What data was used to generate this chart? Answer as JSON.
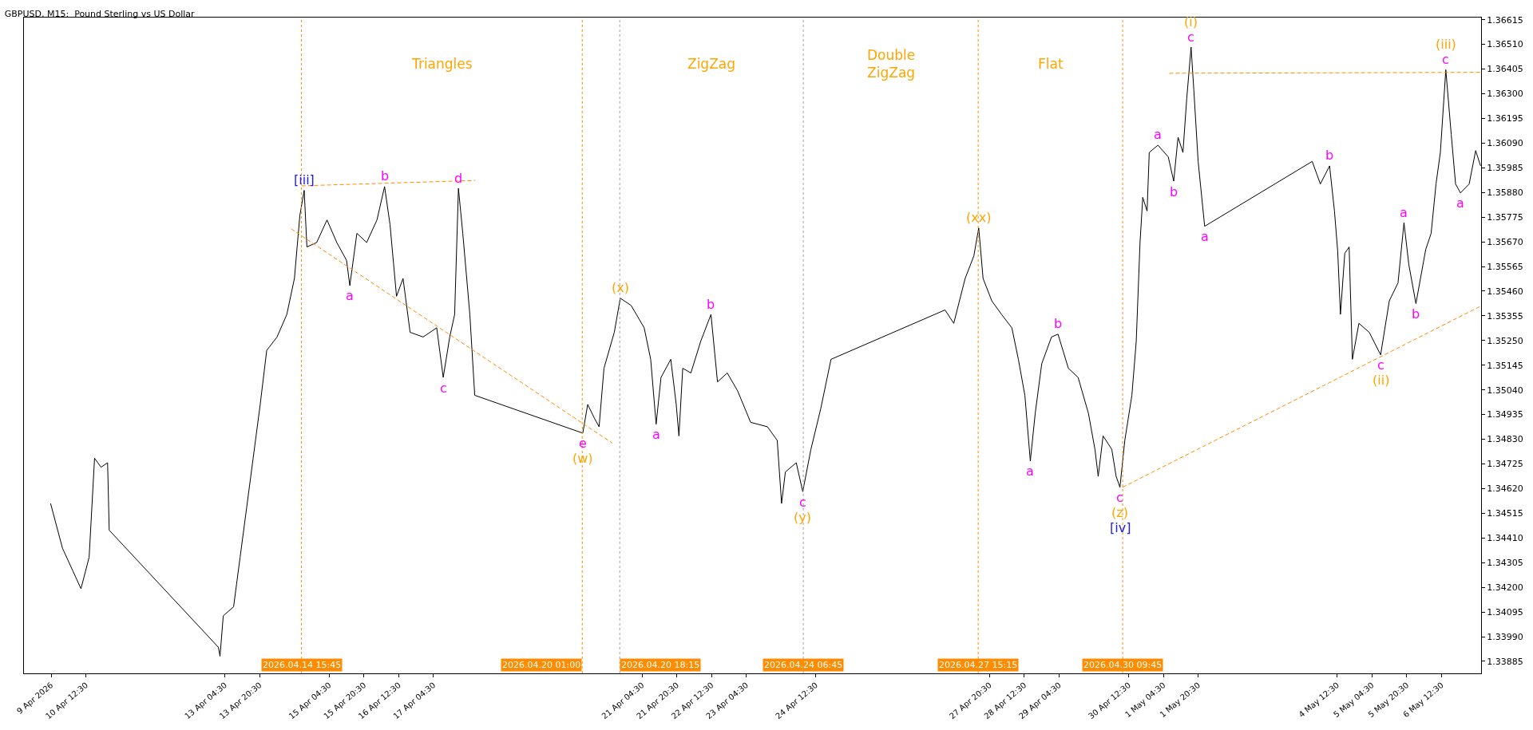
{
  "chart_data": {
    "type": "line",
    "title": "GBPUSD, M15:  Pound Sterling vs US Dollar",
    "xlim": [
      "2026-04-09T08:00",
      "2026-05-07T06:45"
    ],
    "ylim": [
      1.33834,
      1.36624
    ],
    "xticks": [
      {
        "value": "2026-04-09T20:30",
        "label": "9 Apr 2026"
      },
      {
        "value": "2026-04-10T12:30",
        "label": "10 Apr 12:30"
      },
      {
        "value": "2026-04-13T04:30",
        "label": "13 Apr 04:30"
      },
      {
        "value": "2026-04-13T20:30",
        "label": "13 Apr 20:30"
      },
      {
        "value": "2026-04-15T04:30",
        "label": "15 Apr 04:30"
      },
      {
        "value": "2026-04-15T20:30",
        "label": "15 Apr 20:30"
      },
      {
        "value": "2026-04-16T12:30",
        "label": "16 Apr 12:30"
      },
      {
        "value": "2026-04-17T04:30",
        "label": "17 Apr 04:30"
      },
      {
        "value": "2026-04-21T04:30",
        "label": "21 Apr 04:30"
      },
      {
        "value": "2026-04-21T20:30",
        "label": "21 Apr 20:30"
      },
      {
        "value": "2026-04-22T12:30",
        "label": "22 Apr 12:30"
      },
      {
        "value": "2026-04-23T04:30",
        "label": "23 Apr 04:30"
      },
      {
        "value": "2026-04-24T12:30",
        "label": "24 Apr 12:30"
      },
      {
        "value": "2026-04-27T20:30",
        "label": "27 Apr 20:30"
      },
      {
        "value": "2026-04-28T12:30",
        "label": "28 Apr 12:30"
      },
      {
        "value": "2026-04-29T04:30",
        "label": "29 Apr 04:30"
      },
      {
        "value": "2026-04-30T12:30",
        "label": "30 Apr 12:30"
      },
      {
        "value": "2026-05-01T04:30",
        "label": "1 May 04:30"
      },
      {
        "value": "2026-05-01T20:30",
        "label": "1 May 20:30"
      },
      {
        "value": "2026-05-04T12:30",
        "label": "4 May 12:30"
      },
      {
        "value": "2026-05-05T04:30",
        "label": "5 May 04:30"
      },
      {
        "value": "2026-05-05T20:30",
        "label": "5 May 20:30"
      },
      {
        "value": "2026-05-06T12:30",
        "label": "6 May 12:30"
      }
    ],
    "yticks": [
      {
        "value": 1.33885,
        "label": "1.33885"
      },
      {
        "value": 1.3399,
        "label": "1.33990"
      },
      {
        "value": 1.34095,
        "label": "1.34095"
      },
      {
        "value": 1.342,
        "label": "1.34200"
      },
      {
        "value": 1.34305,
        "label": "1.34305"
      },
      {
        "value": 1.3441,
        "label": "1.34410"
      },
      {
        "value": 1.34515,
        "label": "1.34515"
      },
      {
        "value": 1.3462,
        "label": "1.34620"
      },
      {
        "value": 1.34725,
        "label": "1.34725"
      },
      {
        "value": 1.3483,
        "label": "1.34830"
      },
      {
        "value": 1.34935,
        "label": "1.34935"
      },
      {
        "value": 1.3504,
        "label": "1.35040"
      },
      {
        "value": 1.35145,
        "label": "1.35145"
      },
      {
        "value": 1.3525,
        "label": "1.35250"
      },
      {
        "value": 1.35355,
        "label": "1.35355"
      },
      {
        "value": 1.3546,
        "label": "1.35460"
      },
      {
        "value": 1.35565,
        "label": "1.35565"
      },
      {
        "value": 1.3567,
        "label": "1.35670"
      },
      {
        "value": 1.35775,
        "label": "1.35775"
      },
      {
        "value": 1.3588,
        "label": "1.35880"
      },
      {
        "value": 1.35985,
        "label": "1.35985"
      },
      {
        "value": 1.3609,
        "label": "1.36090"
      },
      {
        "value": 1.36195,
        "label": "1.36195"
      },
      {
        "value": 1.363,
        "label": "1.36300"
      },
      {
        "value": 1.36405,
        "label": "1.36405"
      },
      {
        "value": 1.3651,
        "label": "1.36510"
      },
      {
        "value": 1.36615,
        "label": "1.36615"
      }
    ],
    "series": [
      {
        "color": "#000000",
        "x": [
          "2026-04-09T20:15",
          "2026-04-10T01:45",
          "2026-04-10T06:30",
          "2026-04-10T10:15",
          "2026-04-10T14:00",
          "2026-04-10T16:30",
          "2026-04-10T19:30",
          "2026-04-10T22:30",
          "2026-04-10T23:15",
          "2026-04-13T01:30",
          "2026-04-13T02:15",
          "2026-04-13T03:45",
          "2026-04-13T08:30",
          "2026-04-13T11:30",
          "2026-04-13T14:30",
          "2026-04-13T17:30",
          "2026-04-13T20:45",
          "2026-04-13T23:45",
          "2026-04-14T04:30",
          "2026-04-14T09:00",
          "2026-04-14T12:30",
          "2026-04-14T15:00",
          "2026-04-14T17:00",
          "2026-04-14T18:15",
          "2026-04-14T22:45",
          "2026-04-15T03:30",
          "2026-04-15T08:00",
          "2026-04-15T12:30",
          "2026-04-15T14:00",
          "2026-04-15T17:15",
          "2026-04-15T21:45",
          "2026-04-16T02:30",
          "2026-04-16T06:00",
          "2026-04-16T08:30",
          "2026-04-16T11:30",
          "2026-04-16T14:30",
          "2026-04-16T17:45",
          "2026-04-16T23:45",
          "2026-04-17T06:00",
          "2026-04-17T09:00",
          "2026-04-17T12:00",
          "2026-04-17T14:15",
          "2026-04-17T16:00",
          "2026-04-17T18:00",
          "2026-04-17T21:15",
          "2026-04-17T23:30",
          "2026-04-20T01:15",
          "2026-04-20T03:30",
          "2026-04-20T06:30",
          "2026-04-20T08:45",
          "2026-04-20T11:00",
          "2026-04-20T15:45",
          "2026-04-20T18:30",
          "2026-04-20T23:30",
          "2026-04-21T05:30",
          "2026-04-21T08:30",
          "2026-04-21T11:00",
          "2026-04-21T13:15",
          "2026-04-21T17:45",
          "2026-04-21T20:15",
          "2026-04-21T21:30",
          "2026-04-21T23:15",
          "2026-04-22T03:00",
          "2026-04-22T07:30",
          "2026-04-22T12:15",
          "2026-04-22T15:15",
          "2026-04-22T19:45",
          "2026-04-23T00:30",
          "2026-04-23T06:30",
          "2026-04-23T14:15",
          "2026-04-23T18:45",
          "2026-04-23T20:45",
          "2026-04-23T22:30",
          "2026-04-24T03:30",
          "2026-04-24T06:30",
          "2026-04-24T10:15",
          "2026-04-24T14:45",
          "2026-04-24T19:30",
          "2026-04-27T00:00",
          "2026-04-27T04:00",
          "2026-04-27T09:15",
          "2026-04-27T13:15",
          "2026-04-27T15:30",
          "2026-04-27T17:30",
          "2026-04-27T21:30",
          "2026-04-28T02:00",
          "2026-04-28T06:45",
          "2026-04-28T09:45",
          "2026-04-28T12:45",
          "2026-04-28T15:15",
          "2026-04-28T17:30",
          "2026-04-28T20:30",
          "2026-04-29T01:00",
          "2026-04-29T04:00",
          "2026-04-29T08:45",
          "2026-04-29T13:15",
          "2026-04-29T18:00",
          "2026-04-29T21:00",
          "2026-04-29T22:30",
          "2026-04-30T00:45",
          "2026-04-30T04:45",
          "2026-04-30T06:45",
          "2026-04-30T08:30",
          "2026-04-30T10:45",
          "2026-04-30T14:00",
          "2026-04-30T16:00",
          "2026-04-30T17:45",
          "2026-04-30T19:00",
          "2026-04-30T21:00",
          "2026-04-30T22:00",
          "2026-05-01T02:00",
          "2026-05-01T06:45",
          "2026-05-01T09:15",
          "2026-05-01T11:15",
          "2026-05-01T13:30",
          "2026-05-01T15:15",
          "2026-05-01T17:15",
          "2026-05-01T18:30",
          "2026-05-01T20:30",
          "2026-05-01T23:30",
          "2026-05-04T01:00",
          "2026-05-04T04:45",
          "2026-05-04T09:00",
          "2026-05-04T11:15",
          "2026-05-04T12:45",
          "2026-05-04T14:00",
          "2026-05-04T16:00",
          "2026-05-04T18:00",
          "2026-05-04T19:30",
          "2026-05-04T22:30",
          "2026-05-05T03:15",
          "2026-05-05T08:30",
          "2026-05-05T12:30",
          "2026-05-05T16:30",
          "2026-05-05T19:15",
          "2026-05-05T21:30",
          "2026-05-06T00:45",
          "2026-05-06T05:15",
          "2026-05-06T07:45",
          "2026-05-06T10:00",
          "2026-05-06T12:00",
          "2026-05-06T14:30",
          "2026-05-06T17:00",
          "2026-05-06T19:00",
          "2026-05-06T21:15",
          "2026-05-07T01:15",
          "2026-05-07T04:15",
          "2026-05-07T06:30"
        ],
        "values": [
          1.34557,
          1.34366,
          1.3427,
          1.34194,
          1.34328,
          1.34749,
          1.34711,
          1.3473,
          1.34443,
          1.33945,
          1.33907,
          1.34079,
          1.34117,
          1.34328,
          1.34538,
          1.34749,
          1.34978,
          1.35208,
          1.35265,
          1.35361,
          1.35514,
          1.35782,
          1.35889,
          1.35648,
          1.35667,
          1.35763,
          1.35667,
          1.35591,
          1.35484,
          1.35706,
          1.35667,
          1.35763,
          1.35905,
          1.35744,
          1.35438,
          1.35514,
          1.35285,
          1.35265,
          1.35304,
          1.35093,
          1.35265,
          1.35361,
          1.35897,
          1.35706,
          1.35361,
          1.35017,
          1.34856,
          1.34978,
          1.34921,
          1.34883,
          1.35132,
          1.35285,
          1.3543,
          1.35399,
          1.35304,
          1.3517,
          1.34894,
          1.35093,
          1.3517,
          1.34978,
          1.34844,
          1.35132,
          1.35112,
          1.35246,
          1.35361,
          1.35074,
          1.35112,
          1.35036,
          1.34902,
          1.34883,
          1.34825,
          1.34557,
          1.34691,
          1.3473,
          1.34607,
          1.34787,
          1.34959,
          1.3517,
          1.3538,
          1.35323,
          1.35514,
          1.3561,
          1.35729,
          1.35514,
          1.35419,
          1.35361,
          1.35304,
          1.3517,
          1.35017,
          1.34737,
          1.3494,
          1.35151,
          1.35265,
          1.35277,
          1.35132,
          1.35093,
          1.3494,
          1.34787,
          1.34672,
          1.34844,
          1.34787,
          1.34672,
          1.34626,
          1.34825,
          1.35017,
          1.35246,
          1.35667,
          1.35859,
          1.35801,
          1.3605,
          1.36081,
          1.36031,
          1.35928,
          1.36115,
          1.3605,
          1.3628,
          1.36498,
          1.36318,
          1.36012,
          1.35736,
          1.36012,
          1.35916,
          1.35993,
          1.35801,
          1.35629,
          1.35361,
          1.35621,
          1.35648,
          1.3517,
          1.35323,
          1.35285,
          1.35189,
          1.35419,
          1.35495,
          1.35751,
          1.35572,
          1.35407,
          1.35637,
          1.35706,
          1.35916,
          1.3605,
          1.36402,
          1.36127,
          1.35916,
          1.35878,
          1.35916,
          1.36058,
          1.35993
        ]
      },
      {
        "type": "line",
        "color": "#ff8c00",
        "line_style": "dashed",
        "x": [
          "2026-04-14T15:45",
          "2026-04-17T23:45"
        ],
        "values": [
          1.35908,
          1.35931
        ]
      },
      {
        "type": "line",
        "color": "#ff8c00",
        "line_style": "dashed",
        "x": [
          "2026-04-14T11:00",
          "2026-04-20T14:45"
        ],
        "values": [
          1.35725,
          1.34814
        ]
      },
      {
        "type": "line",
        "color": "#ff8c00",
        "line_style": "dashed",
        "x": [
          "2026-05-01T07:15",
          "2026-05-07T06:30"
        ],
        "values": [
          1.36387,
          1.36391
        ]
      },
      {
        "type": "line",
        "color": "#ff8c00",
        "line_style": "dashed",
        "x": [
          "2026-04-30T09:45",
          "2026-05-07T06:30"
        ],
        "values": [
          1.34626,
          1.35396
        ]
      }
    ],
    "ref_lines": [
      {
        "axis": "x",
        "value": "2026-04-14T15:45",
        "label": "2026.04.14 15:45",
        "color": "#ff8c00",
        "line_style": "dotted"
      },
      {
        "axis": "x",
        "value": "2026-04-20T01:00",
        "label": "2026.04.20 01:00",
        "color": "#ff8c00",
        "line_style": "dotted"
      },
      {
        "axis": "x",
        "value": "2026-04-20T18:15",
        "label": "2026.04.20 18:15",
        "color": "#a0a0a0",
        "line_style": "dotted"
      },
      {
        "axis": "x",
        "value": "2026-04-24T06:45",
        "label": "2026.04.24 06:45",
        "color": "#a0a0a0",
        "line_style": "dotted"
      },
      {
        "axis": "x",
        "value": "2026-04-27T15:15",
        "label": "2026.04.27 15:15",
        "color": "#ff8c00",
        "line_style": "dotted"
      },
      {
        "axis": "x",
        "value": "2026-04-30T09:45",
        "label": "2026.04.30 09:45",
        "color": "#ff8c00",
        "line_style": "dotted"
      }
    ],
    "annotations": [
      "Triangles",
      "ZigZag",
      "Double ZigZag",
      "Flat",
      {
        "text": "[iii]",
        "x": "2026-04-14T17:00",
        "y": 1.35889
      },
      {
        "text": "b",
        "x": "2026-04-16T06:00",
        "y": 1.35905
      },
      {
        "text": "d",
        "x": "2026-04-17T16:00",
        "y": 1.35897
      },
      {
        "text": "a",
        "x": "2026-04-15T14:00",
        "y": 1.35484
      },
      {
        "text": "c",
        "x": "2026-04-17T09:00",
        "y": 1.35093
      },
      {
        "text": "e",
        "x": "2026-04-20T01:15",
        "y": 1.34856
      },
      {
        "text": "(w)",
        "x": "2026-04-20T01:15",
        "y": 1.34856
      },
      {
        "text": "(x)",
        "x": "2026-04-20T18:30",
        "y": 1.3543
      },
      {
        "text": "a",
        "x": "2026-04-21T11:00",
        "y": 1.34894
      },
      {
        "text": "b",
        "x": "2026-04-22T12:15",
        "y": 1.35361
      },
      {
        "text": "c",
        "x": "2026-04-24T06:30",
        "y": 1.34607
      },
      {
        "text": "(y)",
        "x": "2026-04-24T06:30",
        "y": 1.34607
      },
      {
        "text": "(xx)",
        "x": "2026-04-27T15:30",
        "y": 1.35729
      },
      {
        "text": "a",
        "x": "2026-04-28T15:15",
        "y": 1.34737
      },
      {
        "text": "b",
        "x": "2026-04-29T04:00",
        "y": 1.35277
      },
      {
        "text": "c",
        "x": "2026-04-30T08:30",
        "y": 1.34626
      },
      {
        "text": "(z)",
        "x": "2026-04-30T08:30",
        "y": 1.34626
      },
      {
        "text": "[iv]",
        "x": "2026-04-30T08:30",
        "y": 1.34626
      },
      {
        "text": "a",
        "x": "2026-05-01T02:00",
        "y": 1.36081
      },
      {
        "text": "b",
        "x": "2026-05-01T09:15",
        "y": 1.35928
      },
      {
        "text": "c",
        "x": "2026-05-01T17:15",
        "y": 1.36498
      },
      {
        "text": "(i)",
        "x": "2026-05-01T17:15",
        "y": 1.36498
      },
      {
        "text": "a",
        "x": "2026-05-01T23:30",
        "y": 1.35736
      },
      {
        "text": "b",
        "x": "2026-05-04T09:00",
        "y": 1.35993
      },
      {
        "text": "c",
        "x": "2026-05-05T08:30",
        "y": 1.35189
      },
      {
        "text": "(ii)",
        "x": "2026-05-05T08:30",
        "y": 1.35189
      },
      {
        "text": "a",
        "x": "2026-05-05T19:15",
        "y": 1.35751
      },
      {
        "text": "b",
        "x": "2026-05-06T00:45",
        "y": 1.35407
      },
      {
        "text": "c",
        "x": "2026-05-06T14:30",
        "y": 1.36402
      },
      {
        "text": "(iii)",
        "x": "2026-05-06T14:30",
        "y": 1.36402
      },
      {
        "text": "a",
        "x": "2026-05-06T21:15",
        "y": 1.35878
      }
    ]
  }
}
